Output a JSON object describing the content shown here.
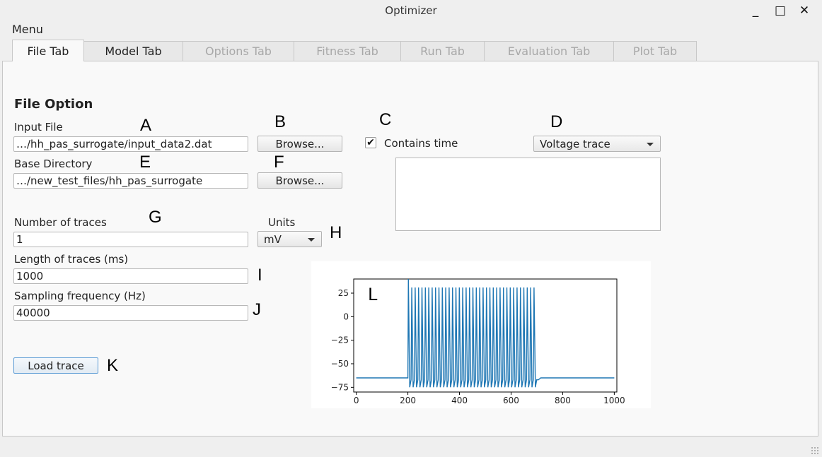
{
  "window": {
    "title": "Optimizer",
    "minimize_glyph": "_",
    "maximize_glyph": "□",
    "close_glyph": "✕"
  },
  "menu": {
    "label": "Menu"
  },
  "tabs": [
    {
      "label": "File Tab",
      "state": "active"
    },
    {
      "label": "Model Tab",
      "state": "enabled"
    },
    {
      "label": "Options Tab",
      "state": "disabled"
    },
    {
      "label": "Fitness Tab",
      "state": "disabled"
    },
    {
      "label": "Run Tab",
      "state": "disabled"
    },
    {
      "label": "Evaluation Tab",
      "state": "disabled"
    },
    {
      "label": "Plot Tab",
      "state": "disabled"
    }
  ],
  "file_option": {
    "heading": "File Option",
    "input_file_label": "Input File",
    "input_file_value": "…/hh_pas_surrogate/input_data2.dat",
    "browse_label": "Browse...",
    "base_dir_label": "Base Directory",
    "base_dir_value": "…/new_test_files/hh_pas_surrogate",
    "contains_time_label": "Contains time",
    "contains_time_checked": true,
    "check_glyph": "✔",
    "trace_type": "Voltage trace",
    "num_traces_label": "Number of traces",
    "num_traces_value": "1",
    "units_label": "Units",
    "units_value": "mV",
    "length_label": "Length of traces (ms)",
    "length_value": "1000",
    "sampling_label": "Sampling frequency (Hz)",
    "sampling_value": "40000",
    "load_label": "Load trace"
  },
  "annotations": [
    "A",
    "B",
    "C",
    "D",
    "E",
    "F",
    "G",
    "H",
    "I",
    "J",
    "K",
    "L"
  ],
  "colors": {
    "trace": "#1f77b4",
    "panel": "#f9f9f9",
    "window": "#efefef"
  },
  "chart_data": {
    "type": "line",
    "title": "",
    "xlabel": "",
    "ylabel": "",
    "xlim": [
      -10,
      1010
    ],
    "ylim": [
      -80,
      40
    ],
    "xticks": [
      0,
      200,
      400,
      600,
      800,
      1000
    ],
    "yticks": [
      25,
      0,
      -25,
      -50,
      -75
    ],
    "grid": false,
    "series": [
      {
        "description": "resting -65 mV before 200 ms and after ~700 ms; first spike peaks ~40 mV, then regular spikes peaking ~31 mV with troughs ~-75 mV between 200 and 700 ms",
        "rest_mV": -65,
        "first_spike_peak_mV": 40,
        "spike_peak_mV": 31,
        "spike_trough_mV": -75,
        "stim_start_ms": 200,
        "stim_end_ms": 700,
        "spike_count": 38
      }
    ]
  }
}
